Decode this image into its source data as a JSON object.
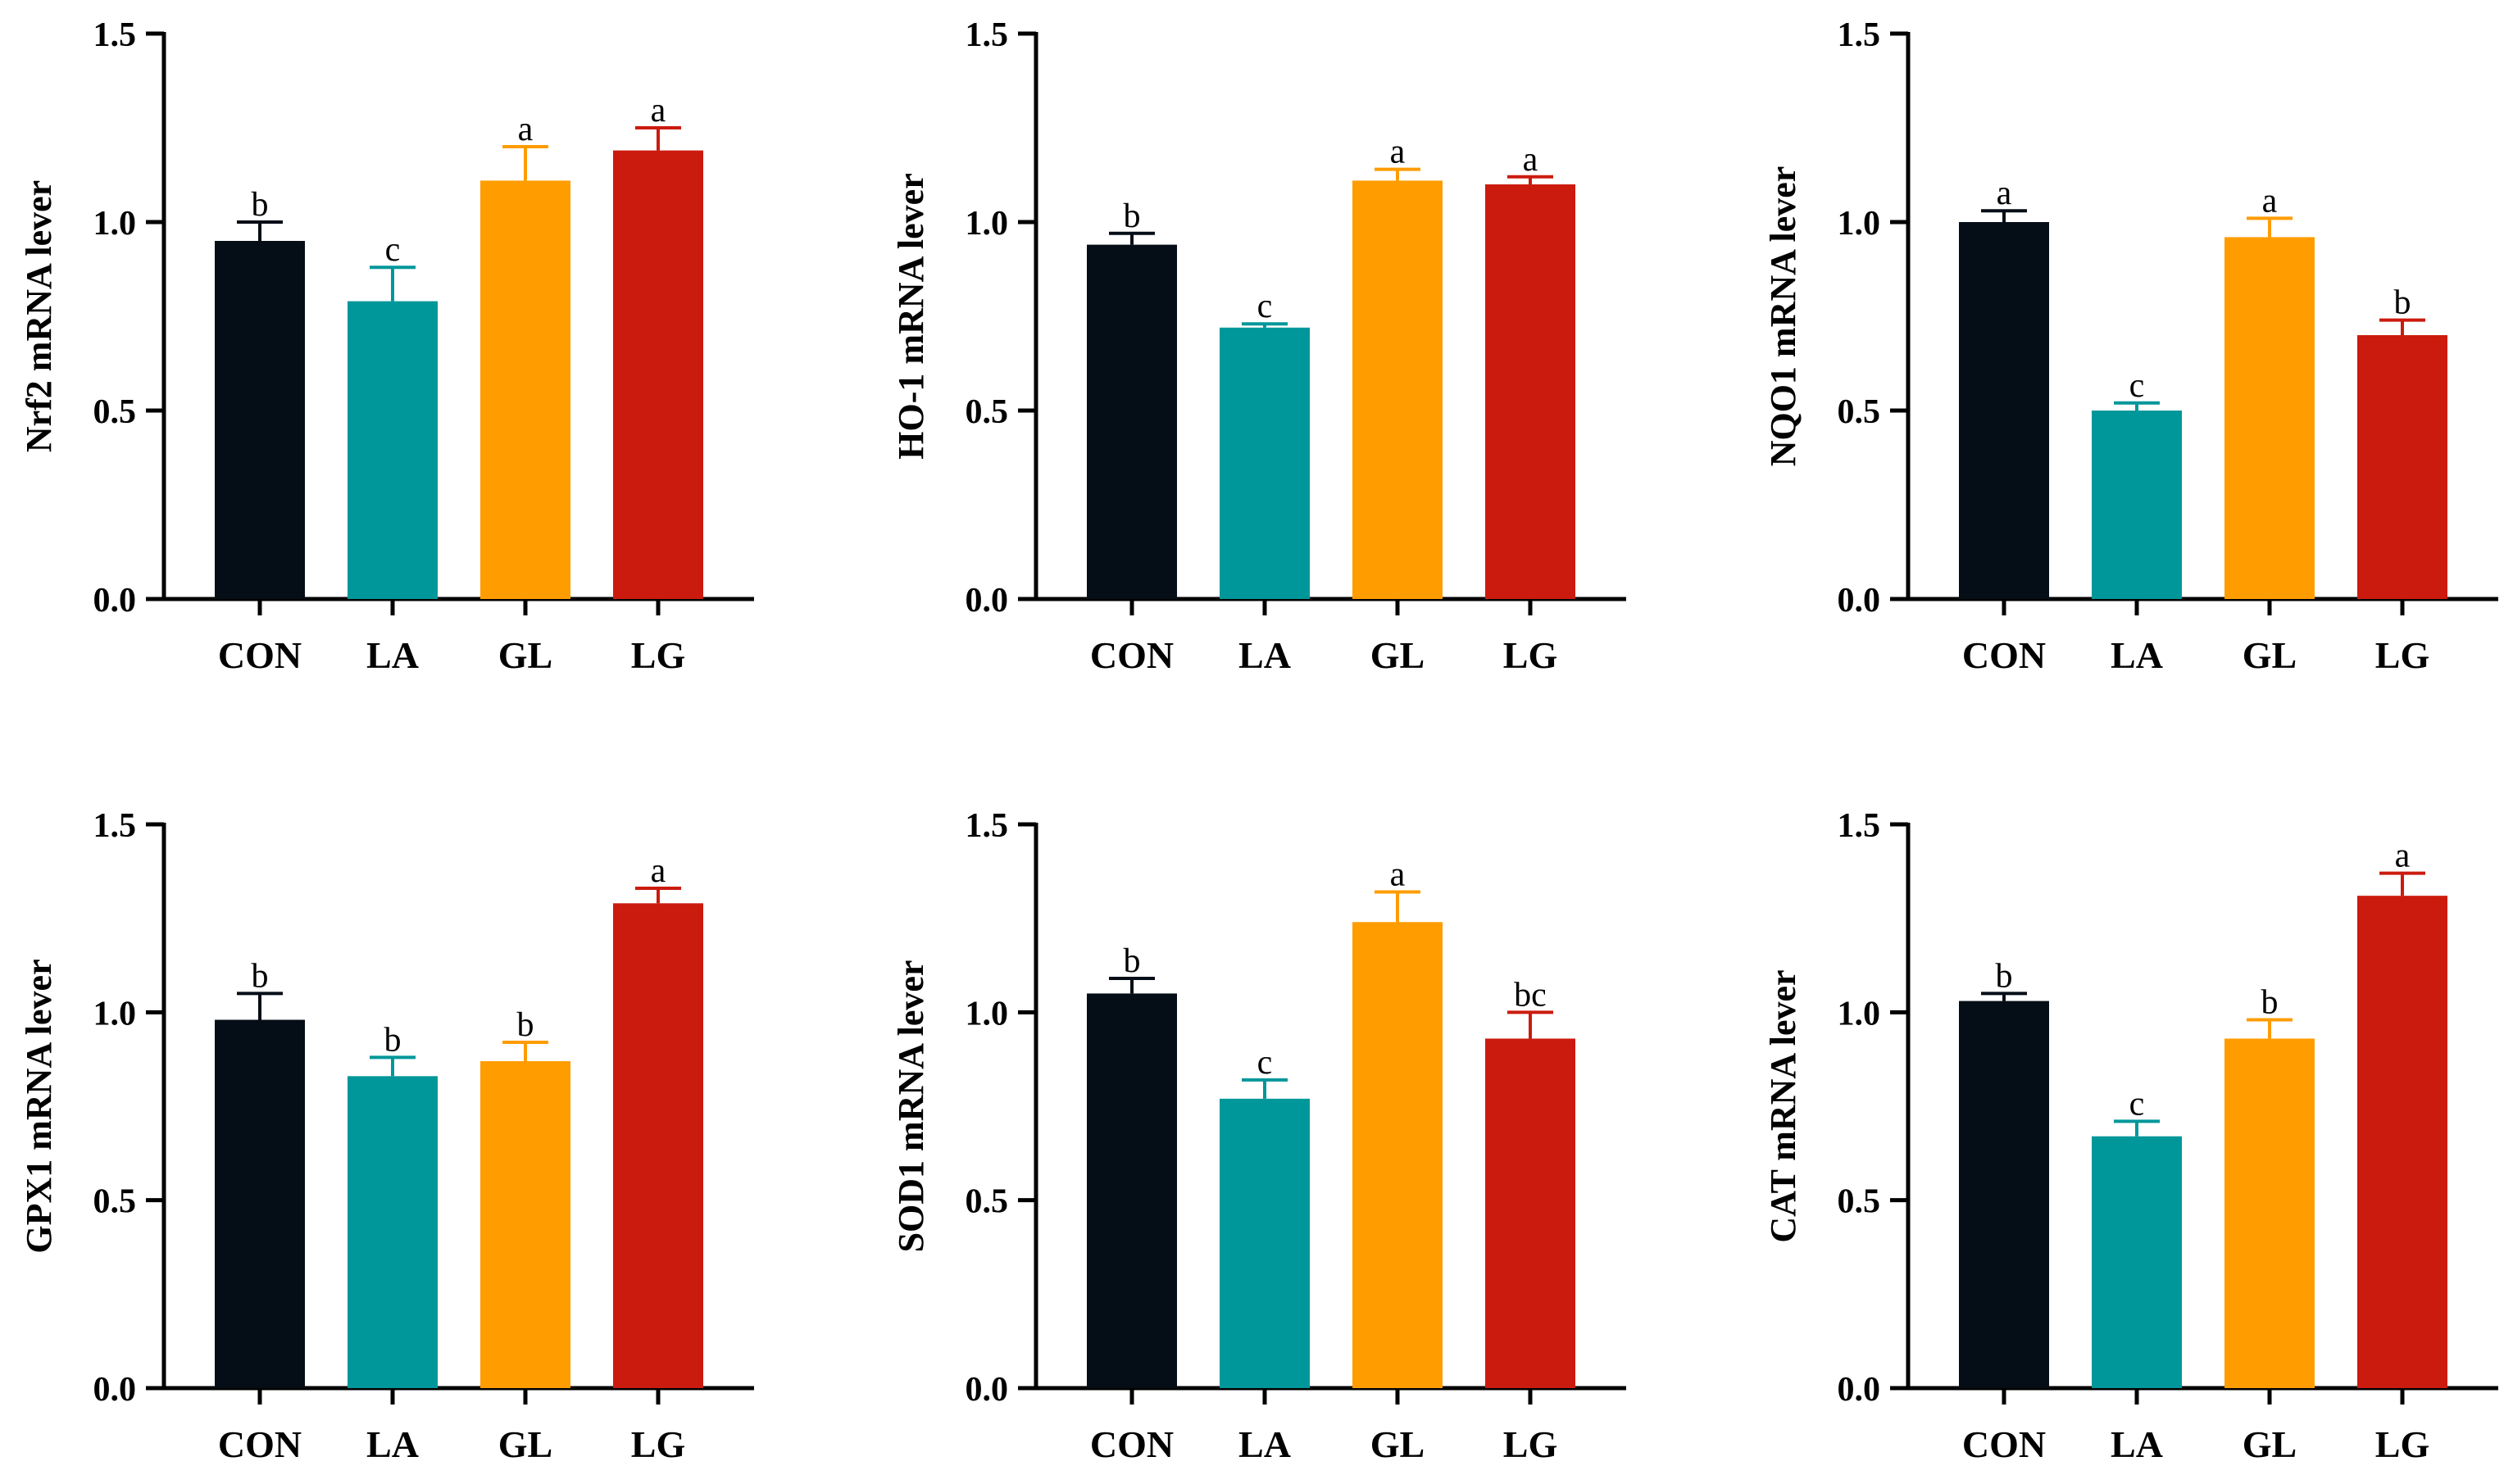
{
  "colors": {
    "CON": "#050d17",
    "LA": "#00979a",
    "GL": "#ff9c00",
    "LG": "#cb1b0e",
    "axis": "#000000"
  },
  "chart_data": [
    {
      "type": "bar",
      "ylabel": "Nrf2 mRNA lever",
      "categories": [
        "CON",
        "LA",
        "GL",
        "LG"
      ],
      "values": [
        0.95,
        0.79,
        1.11,
        1.19
      ],
      "errors": [
        0.05,
        0.09,
        0.09,
        0.06
      ],
      "significance": [
        "b",
        "c",
        "a",
        "a"
      ],
      "ylim": [
        0,
        1.5
      ],
      "yticks": [
        "0.0",
        "0.5",
        "1.0",
        "1.5"
      ]
    },
    {
      "type": "bar",
      "ylabel": "HO-1 mRNA lever",
      "categories": [
        "CON",
        "LA",
        "GL",
        "LG"
      ],
      "values": [
        0.94,
        0.72,
        1.11,
        1.1
      ],
      "errors": [
        0.03,
        0.01,
        0.03,
        0.02
      ],
      "significance": [
        "b",
        "c",
        "a",
        "a"
      ],
      "ylim": [
        0,
        1.5
      ],
      "yticks": [
        "0.0",
        "0.5",
        "1.0",
        "1.5"
      ]
    },
    {
      "type": "bar",
      "ylabel": "NQO1 mRNA lever",
      "categories": [
        "CON",
        "LA",
        "GL",
        "LG"
      ],
      "values": [
        1.0,
        0.5,
        0.96,
        0.7
      ],
      "errors": [
        0.03,
        0.02,
        0.05,
        0.04
      ],
      "significance": [
        "a",
        "c",
        "a",
        "b"
      ],
      "ylim": [
        0,
        1.5
      ],
      "yticks": [
        "0.0",
        "0.5",
        "1.0",
        "1.5"
      ]
    },
    {
      "type": "bar",
      "ylabel": "GPX1 mRNA lever",
      "categories": [
        "CON",
        "LA",
        "GL",
        "LG"
      ],
      "values": [
        0.98,
        0.83,
        0.87,
        1.29
      ],
      "errors": [
        0.07,
        0.05,
        0.05,
        0.04
      ],
      "significance": [
        "b",
        "b",
        "b",
        "a"
      ],
      "ylim": [
        0,
        1.5
      ],
      "yticks": [
        "0.0",
        "0.5",
        "1.0",
        "1.5"
      ]
    },
    {
      "type": "bar",
      "ylabel": "SOD1 mRNA lever",
      "categories": [
        "CON",
        "LA",
        "GL",
        "LG"
      ],
      "values": [
        1.05,
        0.77,
        1.24,
        0.93
      ],
      "errors": [
        0.04,
        0.05,
        0.08,
        0.07
      ],
      "significance": [
        "b",
        "c",
        "a",
        "bc"
      ],
      "ylim": [
        0,
        1.5
      ],
      "yticks": [
        "0.0",
        "0.5",
        "1.0",
        "1.5"
      ]
    },
    {
      "type": "bar",
      "ylabel": "CAT mRNA lever",
      "categories": [
        "CON",
        "LA",
        "GL",
        "LG"
      ],
      "values": [
        1.03,
        0.67,
        0.93,
        1.31
      ],
      "errors": [
        0.02,
        0.04,
        0.05,
        0.06
      ],
      "significance": [
        "b",
        "c",
        "b",
        "a"
      ],
      "ylim": [
        0,
        1.5
      ],
      "yticks": [
        "0.0",
        "0.5",
        "1.0",
        "1.5"
      ]
    }
  ]
}
